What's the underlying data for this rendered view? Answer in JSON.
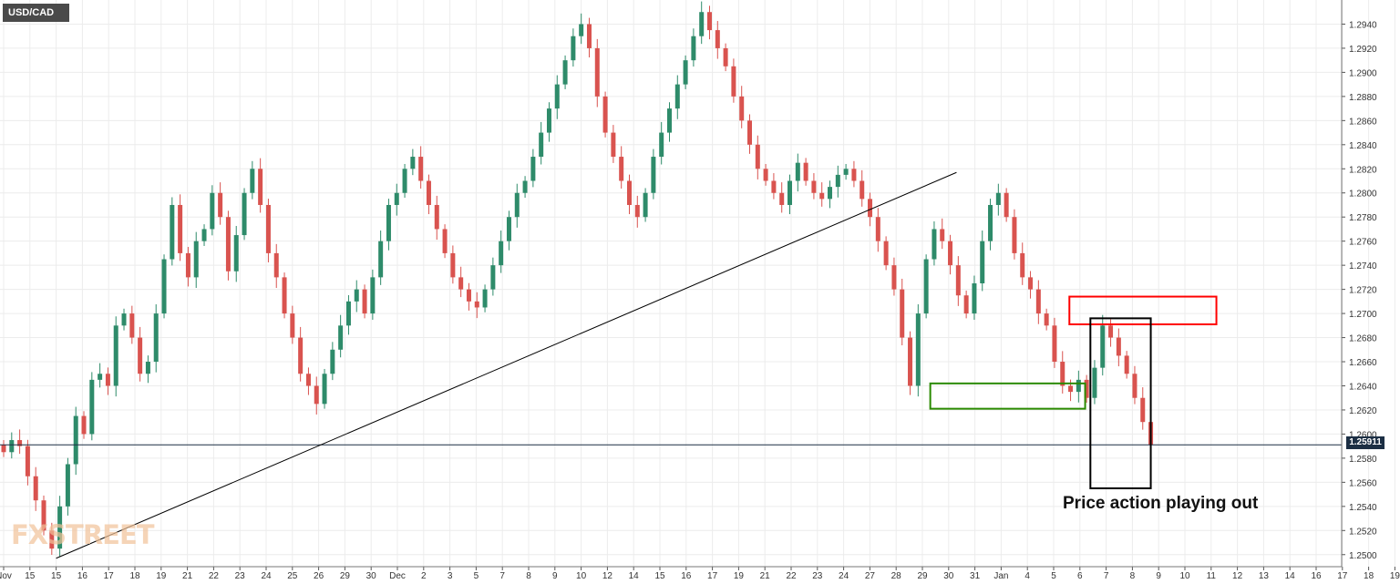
{
  "symbol": "USD/CAD",
  "annotation": "Price action playing out",
  "last_price_label": "1.25911",
  "watermark_text": "FXSTREET",
  "colors": {
    "bull": "#2e8b6a",
    "bear": "#d9534f",
    "grid": "#ececec",
    "trendline": "#000000",
    "red_zone": "#ff0000",
    "green_zone": "#2a8a00",
    "box": "#000000",
    "price_tag_bg": "#1c2f44"
  },
  "chart_data": {
    "type": "candlestick",
    "title": "USD/CAD",
    "ylim": [
      1.249,
      1.296
    ],
    "y_ticks": [
      "1.2500",
      "1.2520",
      "1.2540",
      "1.2560",
      "1.2580",
      "1.2600",
      "1.2620",
      "1.2640",
      "1.2660",
      "1.2680",
      "1.2700",
      "1.2720",
      "1.2740",
      "1.2760",
      "1.2780",
      "1.2800",
      "1.2820",
      "1.2840",
      "1.2860",
      "1.2880",
      "1.2900",
      "1.2920",
      "1.2940"
    ],
    "x_ticks": [
      "Nov",
      "15",
      "15",
      "16",
      "17",
      "18",
      "19",
      "21",
      "22",
      "23",
      "24",
      "25",
      "26",
      "29",
      "30",
      "Dec",
      "2",
      "3",
      "5",
      "7",
      "8",
      "9",
      "10",
      "12",
      "14",
      "15",
      "16",
      "17",
      "19",
      "21",
      "22",
      "23",
      "24",
      "27",
      "28",
      "29",
      "30",
      "31",
      "Jan",
      "4",
      "5",
      "6",
      "7",
      "8",
      "9",
      "10",
      "11",
      "12",
      "13",
      "14",
      "16",
      "17",
      "18",
      "19"
    ],
    "grid": true,
    "current_price": 1.25911,
    "trendline": {
      "start": {
        "session": 2,
        "price": 1.2497
      },
      "end": {
        "session": 36.3,
        "price": 1.2817
      }
    },
    "zones": [
      {
        "name": "resistance",
        "color": "red",
        "sessions": [
          40.6,
          46.2
        ],
        "price_range": [
          1.2691,
          1.2714
        ]
      },
      {
        "name": "support",
        "color": "green",
        "sessions": [
          35.3,
          41.2
        ],
        "price_range": [
          1.2621,
          1.2642
        ]
      },
      {
        "name": "focus box",
        "color": "black",
        "sessions": [
          41.4,
          43.7
        ],
        "price_range": [
          1.2555,
          1.2696
        ]
      }
    ],
    "closes": [
      1.2585,
      1.2595,
      1.259,
      1.2565,
      1.2545,
      1.252,
      1.2505,
      1.254,
      1.2575,
      1.2615,
      1.26,
      1.2645,
      1.265,
      1.264,
      1.269,
      1.27,
      1.268,
      1.265,
      1.266,
      1.27,
      1.2745,
      1.279,
      1.275,
      1.273,
      1.276,
      1.277,
      1.28,
      1.278,
      1.2735,
      1.2765,
      1.28,
      1.282,
      1.279,
      1.275,
      1.273,
      1.27,
      1.268,
      1.265,
      1.264,
      1.2625,
      1.265,
      1.267,
      1.269,
      1.271,
      1.272,
      1.27,
      1.273,
      1.276,
      1.279,
      1.28,
      1.282,
      1.283,
      1.281,
      1.279,
      1.277,
      1.275,
      1.273,
      1.272,
      1.271,
      1.2705,
      1.272,
      1.274,
      1.276,
      1.278,
      1.28,
      1.281,
      1.283,
      1.285,
      1.287,
      1.289,
      1.291,
      1.293,
      1.294,
      1.292,
      1.288,
      1.285,
      1.283,
      1.281,
      1.279,
      1.278,
      1.28,
      1.283,
      1.285,
      1.287,
      1.289,
      1.291,
      1.293,
      1.295,
      1.2935,
      1.292,
      1.2905,
      1.288,
      1.286,
      1.284,
      1.282,
      1.281,
      1.28,
      1.279,
      1.281,
      1.2825,
      1.281,
      1.28,
      1.2795,
      1.2805,
      1.2815,
      1.282,
      1.281,
      1.2795,
      1.278,
      1.276,
      1.274,
      1.272,
      1.268,
      1.264,
      1.27,
      1.2745,
      1.277,
      1.276,
      1.274,
      1.2715,
      1.27,
      1.2725,
      1.276,
      1.279,
      1.28,
      1.278,
      1.275,
      1.273,
      1.272,
      1.27,
      1.269,
      1.266,
      1.264,
      1.2635,
      1.2645,
      1.263,
      1.2655,
      1.269,
      1.268,
      1.2665,
      1.265,
      1.263,
      1.261,
      1.2591
    ]
  }
}
